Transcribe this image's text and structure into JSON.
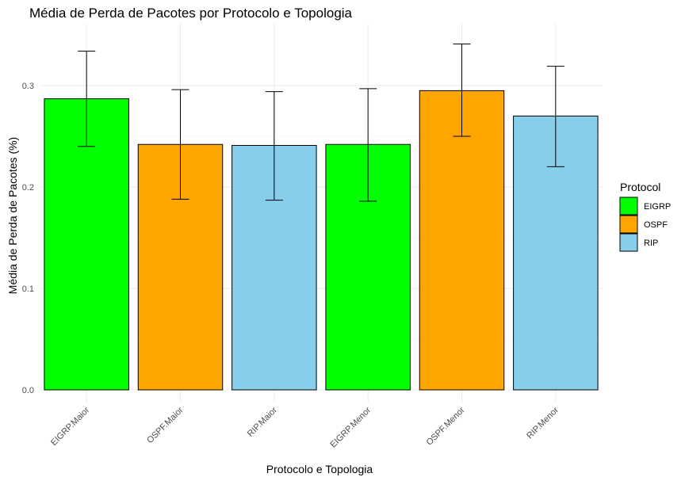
{
  "chart_data": {
    "type": "bar",
    "title": "Média de Perda de Pacotes por Protocolo e Topologia",
    "xlabel": "Protocolo e Topologia",
    "ylabel": "Média de Perda de Pacotes (%)",
    "ylim": [
      0,
      0.35
    ],
    "yticks": [
      "0.0",
      "0.1",
      "0.2",
      "0.3"
    ],
    "ytick_values": [
      0,
      0.1,
      0.2,
      0.3
    ],
    "grid": true,
    "legend_title": "Protocol",
    "legend_position": "right",
    "legend": [
      {
        "name": "EIGRP",
        "color": "#00ff00"
      },
      {
        "name": "OSPF",
        "color": "#ffa500"
      },
      {
        "name": "RIP",
        "color": "#87ceeb"
      }
    ],
    "categories": [
      "EIGRP.Maior",
      "OSPF.Maior",
      "RIP.Maior",
      "EIGRP.Menor",
      "OSPF.Menor",
      "RIP.Menor"
    ],
    "values": [
      0.287,
      0.242,
      0.241,
      0.242,
      0.295,
      0.27
    ],
    "error_low": [
      0.24,
      0.188,
      0.187,
      0.186,
      0.25,
      0.22
    ],
    "error_high": [
      0.334,
      0.296,
      0.294,
      0.297,
      0.341,
      0.319
    ],
    "protocol": [
      "EIGRP",
      "OSPF",
      "RIP",
      "EIGRP",
      "OSPF",
      "RIP"
    ]
  }
}
